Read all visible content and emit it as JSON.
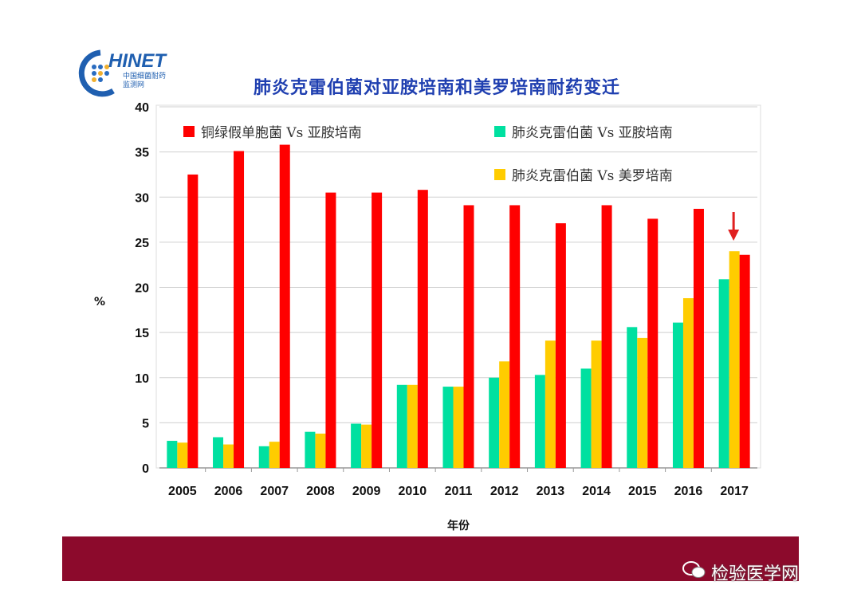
{
  "logo": {
    "text": "CHINET",
    "subtitle": "中国细菌耐药监测网"
  },
  "watermark": {
    "text": "检验医学网",
    "icon": "wechat-icon"
  },
  "colors": {
    "red": "#ff0000",
    "green": "#00e0a0",
    "yellow": "#ffcc00",
    "title": "#1f3fb0",
    "band": "#8c0a2c"
  },
  "chart_data": {
    "type": "bar",
    "title": "肺炎克雷伯菌对亚胺培南和美罗培南耐药变迁",
    "xlabel": "年份",
    "ylabel": "%",
    "ylim": [
      0,
      40
    ],
    "yticks": [
      "0",
      "5",
      "10",
      "15",
      "20",
      "25",
      "30",
      "35",
      "40"
    ],
    "categories": [
      "2005",
      "2006",
      "2007",
      "2008",
      "2009",
      "2010",
      "2011",
      "2012",
      "2013",
      "2014",
      "2015",
      "2016",
      "2017"
    ],
    "grid": true,
    "legend_placement": "top",
    "annotation": "down-arrow above 2017",
    "series": [
      {
        "name": "肺炎克雷伯菌 Vs 亚胺培南",
        "color": "#00e0a0",
        "values": [
          3.0,
          3.4,
          2.4,
          4.0,
          4.9,
          9.2,
          9.0,
          10.0,
          10.3,
          11.0,
          15.6,
          16.1,
          20.9
        ]
      },
      {
        "name": "肺炎克雷伯菌 Vs 美罗培南",
        "color": "#ffcc00",
        "values": [
          2.8,
          2.6,
          2.9,
          3.8,
          4.8,
          9.2,
          9.0,
          11.8,
          14.1,
          14.1,
          14.4,
          18.8,
          24.0
        ]
      },
      {
        "name": "铜绿假单胞菌 Vs 亚胺培南",
        "color": "#ff0000",
        "values": [
          32.5,
          35.1,
          35.8,
          30.5,
          30.5,
          30.8,
          29.1,
          29.1,
          27.1,
          29.1,
          27.6,
          28.7,
          23.6
        ]
      }
    ]
  }
}
